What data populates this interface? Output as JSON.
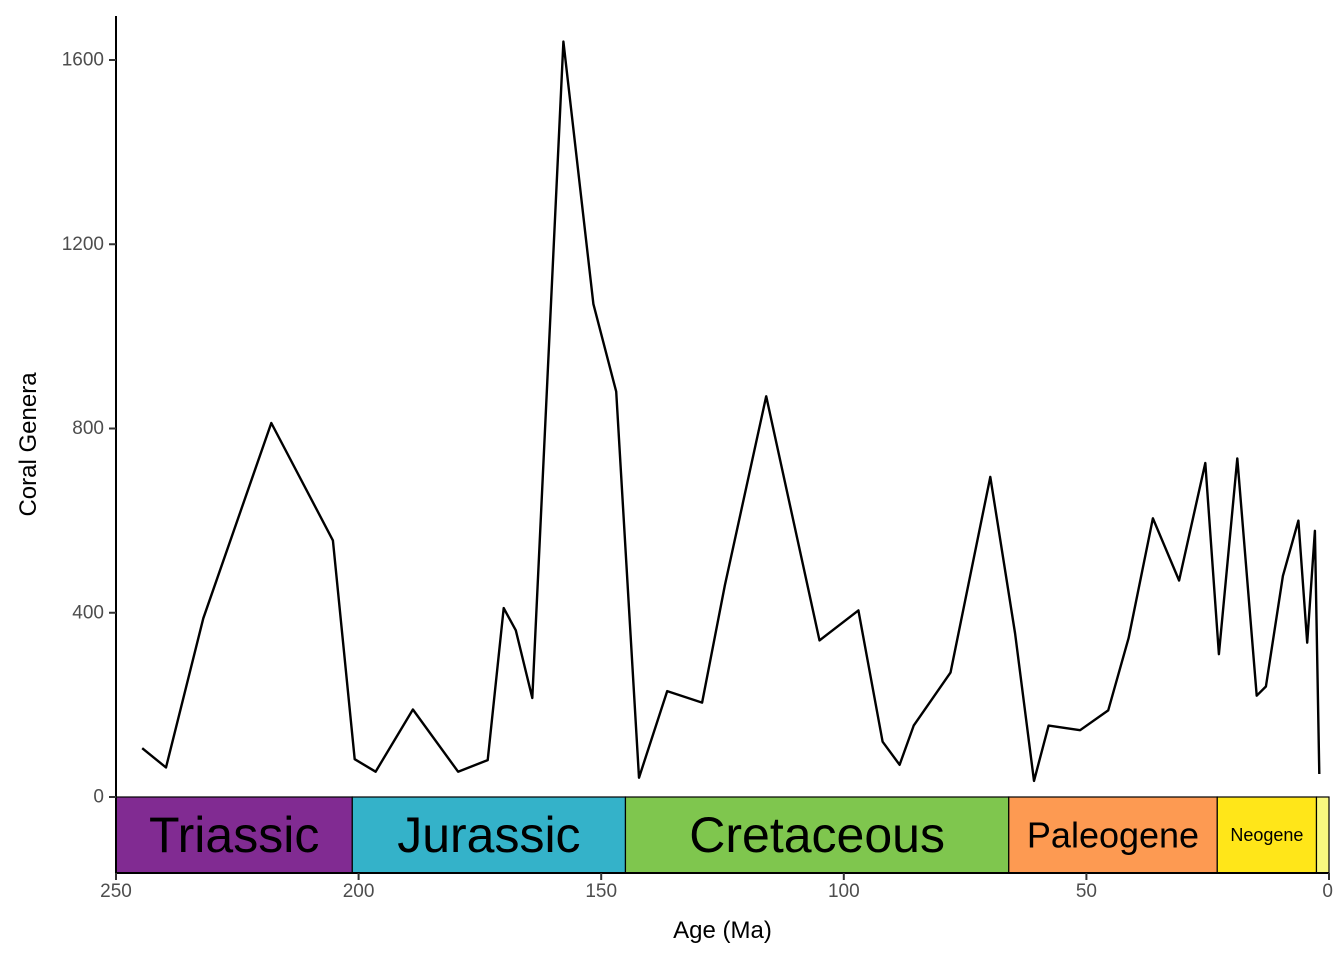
{
  "chart_data": {
    "type": "line",
    "title": "",
    "xlabel": "Age (Ma)",
    "ylabel": "Coral Genera",
    "x_reversed": true,
    "xlim": [
      250,
      0
    ],
    "ylim": [
      0,
      1700
    ],
    "x_ticks": [
      250,
      200,
      150,
      100,
      50,
      0
    ],
    "y_ticks": [
      0,
      400,
      800,
      1200,
      1600
    ],
    "grid": false,
    "legend": "none",
    "line_color": "#000000",
    "series": [
      {
        "x": [
          244.6,
          239.7,
          232.0,
          218.0,
          205.3,
          200.8,
          196.5,
          188.8,
          179.5,
          173.4,
          170.1,
          167.6,
          164.2,
          157.8,
          151.6,
          146.9,
          142.2,
          136.4,
          129.2,
          124.5,
          116.0,
          105.0,
          97.0,
          92.0,
          88.5,
          85.6,
          78.0,
          69.8,
          64.7,
          60.8,
          57.8,
          51.3,
          45.5,
          41.3,
          36.3,
          30.9,
          25.5,
          22.7,
          18.9,
          14.9,
          13.0,
          9.5,
          6.3,
          4.5,
          2.9,
          2.0
        ],
        "y": [
          106,
          64,
          388,
          812,
          557,
          82,
          55,
          190,
          55,
          80,
          410,
          362,
          215,
          1640,
          1070,
          880,
          42,
          230,
          205,
          460,
          870,
          340,
          405,
          120,
          70,
          155,
          270,
          695,
          355,
          35,
          155,
          145,
          188,
          345,
          605,
          470,
          725,
          310,
          735,
          220,
          240,
          480,
          600,
          335,
          578,
          50
        ]
      }
    ],
    "periods": [
      {
        "name": "Triassic",
        "start": 251.9,
        "end": 201.3,
        "color": "#812B92"
      },
      {
        "name": "Jurassic",
        "start": 201.3,
        "end": 145.0,
        "color": "#34B2C9"
      },
      {
        "name": "Cretaceous",
        "start": 145.0,
        "end": 66.0,
        "color": "#7FC64E"
      },
      {
        "name": "Paleogene",
        "start": 66.0,
        "end": 23.03,
        "color": "#FD9A52"
      },
      {
        "name": "Neogene",
        "start": 23.03,
        "end": 2.58,
        "color": "#FFE619"
      },
      {
        "name": "",
        "start": 2.58,
        "end": 0,
        "color": "#F9F97F"
      }
    ]
  }
}
